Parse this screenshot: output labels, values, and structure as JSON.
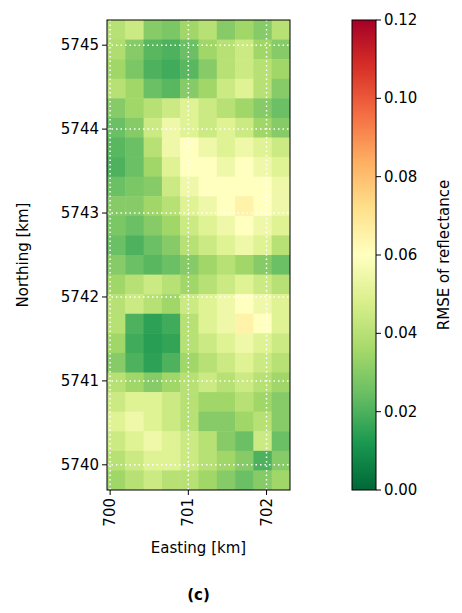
{
  "chart_data": {
    "type": "heatmap",
    "x_label": "Easting [km]",
    "y_label": "Northing [km]",
    "xlim": [
      699.96,
      702.3
    ],
    "ylim": [
      5739.7,
      5745.3
    ],
    "xticks": [
      700,
      701,
      702
    ],
    "yticks": [
      5740,
      5741,
      5742,
      5743,
      5744,
      5745
    ],
    "grid": true,
    "color": "RdYlGn_r",
    "cells": [
      [
        0.04,
        0.045,
        0.03,
        0.028,
        0.035,
        0.04,
        0.03,
        0.035,
        0.03,
        0.04
      ],
      [
        0.038,
        0.03,
        0.022,
        0.02,
        0.025,
        0.035,
        0.04,
        0.045,
        0.035,
        0.03
      ],
      [
        0.035,
        0.028,
        0.02,
        0.018,
        0.022,
        0.03,
        0.04,
        0.045,
        0.04,
        0.035
      ],
      [
        0.04,
        0.035,
        0.025,
        0.022,
        0.03,
        0.035,
        0.045,
        0.05,
        0.04,
        0.03
      ],
      [
        0.03,
        0.035,
        0.04,
        0.045,
        0.05,
        0.045,
        0.04,
        0.035,
        0.03,
        0.025
      ],
      [
        0.025,
        0.03,
        0.045,
        0.055,
        0.05,
        0.045,
        0.05,
        0.045,
        0.035,
        0.03
      ],
      [
        0.022,
        0.025,
        0.04,
        0.055,
        0.06,
        0.055,
        0.05,
        0.055,
        0.05,
        0.045
      ],
      [
        0.02,
        0.025,
        0.035,
        0.05,
        0.06,
        0.06,
        0.055,
        0.06,
        0.055,
        0.05
      ],
      [
        0.025,
        0.028,
        0.03,
        0.045,
        0.055,
        0.06,
        0.06,
        0.06,
        0.06,
        0.055
      ],
      [
        0.03,
        0.03,
        0.035,
        0.04,
        0.05,
        0.055,
        0.06,
        0.065,
        0.06,
        0.055
      ],
      [
        0.028,
        0.025,
        0.03,
        0.035,
        0.045,
        0.05,
        0.055,
        0.06,
        0.055,
        0.05
      ],
      [
        0.025,
        0.02,
        0.025,
        0.03,
        0.04,
        0.045,
        0.05,
        0.055,
        0.05,
        0.04
      ],
      [
        0.03,
        0.025,
        0.022,
        0.025,
        0.03,
        0.035,
        0.04,
        0.035,
        0.03,
        0.025
      ],
      [
        0.035,
        0.04,
        0.045,
        0.04,
        0.035,
        0.04,
        0.045,
        0.05,
        0.045,
        0.04
      ],
      [
        0.04,
        0.045,
        0.04,
        0.035,
        0.045,
        0.05,
        0.055,
        0.06,
        0.055,
        0.05
      ],
      [
        0.04,
        0.02,
        0.015,
        0.018,
        0.04,
        0.05,
        0.055,
        0.065,
        0.06,
        0.05
      ],
      [
        0.035,
        0.018,
        0.014,
        0.016,
        0.04,
        0.045,
        0.05,
        0.055,
        0.05,
        0.045
      ],
      [
        0.03,
        0.02,
        0.015,
        0.02,
        0.035,
        0.04,
        0.045,
        0.05,
        0.045,
        0.04
      ],
      [
        0.04,
        0.035,
        0.03,
        0.035,
        0.04,
        0.045,
        0.04,
        0.045,
        0.04,
        0.035
      ],
      [
        0.045,
        0.05,
        0.05,
        0.045,
        0.04,
        0.035,
        0.035,
        0.04,
        0.035,
        0.03
      ],
      [
        0.05,
        0.055,
        0.05,
        0.045,
        0.04,
        0.03,
        0.03,
        0.035,
        0.04,
        0.03
      ],
      [
        0.045,
        0.05,
        0.055,
        0.05,
        0.045,
        0.04,
        0.03,
        0.025,
        0.045,
        0.025
      ],
      [
        0.04,
        0.045,
        0.05,
        0.05,
        0.045,
        0.04,
        0.035,
        0.03,
        0.02,
        0.03
      ],
      [
        0.035,
        0.04,
        0.045,
        0.04,
        0.04,
        0.035,
        0.03,
        0.025,
        0.03,
        0.035
      ]
    ],
    "colorbar": {
      "label": "RMSE of reflectance",
      "range": [
        0,
        0.12
      ],
      "ticks": [
        {
          "value": 0,
          "label": "0.00"
        },
        {
          "value": 0.02,
          "label": "0.02"
        },
        {
          "value": 0.04,
          "label": "0.04"
        },
        {
          "value": 0.06,
          "label": "0.06"
        },
        {
          "value": 0.08,
          "label": "0.08"
        },
        {
          "value": 0.1,
          "label": "0.10"
        },
        {
          "value": 0.12,
          "label": "0.12"
        }
      ]
    },
    "caption": "(c)"
  }
}
